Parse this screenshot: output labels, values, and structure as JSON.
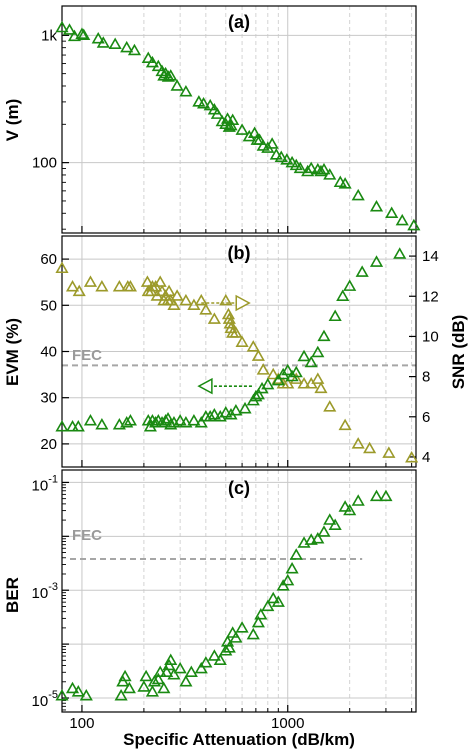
{
  "colors": {
    "green": "#1a8a12",
    "olive": "#9c9a2a",
    "fec": "#a6a6a6",
    "grid_major": "#c8c8c8",
    "grid_minor": "#cfcfcf"
  },
  "x_axis": {
    "label": "Specific Attenuation (dB/km)",
    "scale": "log",
    "range": [
      80,
      4200
    ],
    "tick_values": [
      100,
      1000
    ],
    "tick_labels": [
      "100",
      "1000"
    ],
    "minor_ticks": [
      200,
      300,
      400,
      500,
      600,
      700,
      800,
      900,
      2000,
      3000,
      4000
    ]
  },
  "chart_data": [
    {
      "type": "scatter",
      "panel_label": "(a)",
      "ylabel": "V (m)",
      "yscale": "log",
      "ylim": [
        28,
        1700
      ],
      "y_tick_values": [
        1000,
        100
      ],
      "y_tick_labels": [
        "1k",
        "100"
      ],
      "series": [
        {
          "color": "#1a8a12",
          "marker": "triangle-open",
          "points": [
            [
              80,
              1150
            ],
            [
              87,
              1100
            ],
            [
              92,
              980
            ],
            [
              100,
              1020
            ],
            [
              102,
              1000
            ],
            [
              120,
              940
            ],
            [
              127,
              870
            ],
            [
              145,
              850
            ],
            [
              165,
              800
            ],
            [
              180,
              760
            ],
            [
              210,
              660
            ],
            [
              220,
              610
            ],
            [
              235,
              570
            ],
            [
              245,
              520
            ],
            [
              250,
              480
            ],
            [
              255,
              500
            ],
            [
              263,
              470
            ],
            [
              270,
              480
            ],
            [
              290,
              400
            ],
            [
              320,
              360
            ],
            [
              370,
              300
            ],
            [
              390,
              290
            ],
            [
              420,
              280
            ],
            [
              440,
              260
            ],
            [
              455,
              240
            ],
            [
              480,
              210
            ],
            [
              500,
              200
            ],
            [
              510,
              220
            ],
            [
              520,
              190
            ],
            [
              530,
              195
            ],
            [
              540,
              215
            ],
            [
              600,
              180
            ],
            [
              650,
              160
            ],
            [
              690,
              170
            ],
            [
              710,
              150
            ],
            [
              730,
              150
            ],
            [
              760,
              135
            ],
            [
              800,
              130
            ],
            [
              840,
              140
            ],
            [
              880,
              115
            ],
            [
              930,
              110
            ],
            [
              990,
              105
            ],
            [
              1050,
              100
            ],
            [
              1100,
              95
            ],
            [
              1150,
              90
            ],
            [
              1250,
              85
            ],
            [
              1300,
              90
            ],
            [
              1400,
              88
            ],
            [
              1450,
              85
            ],
            [
              1500,
              88
            ],
            [
              1600,
              80
            ],
            [
              1800,
              70
            ],
            [
              1900,
              68
            ],
            [
              2200,
              55
            ],
            [
              2700,
              45
            ],
            [
              3200,
              40
            ],
            [
              3600,
              35
            ],
            [
              4100,
              32
            ]
          ]
        }
      ]
    },
    {
      "type": "scatter",
      "panel_label": "(b)",
      "ylabel": "EVM (%)",
      "ylim": [
        15,
        65
      ],
      "y_tick_values": [
        20,
        30,
        40,
        50,
        60
      ],
      "y2label": "SNR (dB)",
      "y2lim": [
        3.5,
        15
      ],
      "y2_tick_values": [
        4,
        6,
        8,
        10,
        12,
        14
      ],
      "fec_label": "FEC",
      "fec_evm": 37,
      "arrows": [
        {
          "direction": "right",
          "color": "#9c9a2a",
          "from_x": 380,
          "to_x": 650,
          "y": 50.5
        },
        {
          "direction": "left",
          "color": "#1a8a12",
          "from_x": 670,
          "to_x": 370,
          "y": 32.5
        }
      ],
      "series": [
        {
          "axis": "left",
          "color": "#9c9a2a",
          "marker": "triangle-open",
          "points": [
            [
              80,
              58
            ],
            [
              90,
              54
            ],
            [
              97,
              53
            ],
            [
              110,
              55
            ],
            [
              125,
              54
            ],
            [
              152,
              54
            ],
            [
              167,
              54
            ],
            [
              172,
              54
            ],
            [
              208,
              55
            ],
            [
              210,
              53
            ],
            [
              217,
              53
            ],
            [
              220,
              54
            ],
            [
              228,
              54
            ],
            [
              232,
              52
            ],
            [
              240,
              55
            ],
            [
              245,
              53
            ],
            [
              250,
              51
            ],
            [
              255,
              52
            ],
            [
              262,
              51
            ],
            [
              265,
              53
            ],
            [
              270,
              51
            ],
            [
              280,
              50
            ],
            [
              290,
              52
            ],
            [
              320,
              51
            ],
            [
              350,
              50
            ],
            [
              380,
              51
            ],
            [
              400,
              49
            ],
            [
              440,
              47
            ],
            [
              500,
              51
            ],
            [
              515,
              48
            ],
            [
              520,
              47
            ],
            [
              525,
              46
            ],
            [
              530,
              45
            ],
            [
              540,
              44
            ],
            [
              560,
              44
            ],
            [
              600,
              42
            ],
            [
              680,
              41
            ],
            [
              720,
              39
            ],
            [
              760,
              36
            ],
            [
              850,
              35
            ],
            [
              900,
              34
            ],
            [
              950,
              33
            ],
            [
              1000,
              33
            ],
            [
              1100,
              34
            ],
            [
              1200,
              33
            ],
            [
              1300,
              33
            ],
            [
              1400,
              34
            ],
            [
              1450,
              32
            ],
            [
              1600,
              28
            ],
            [
              1900,
              24
            ],
            [
              2200,
              20
            ],
            [
              2500,
              19
            ],
            [
              3100,
              18
            ],
            [
              4000,
              17
            ]
          ]
        },
        {
          "axis": "right",
          "color": "#1a8a12",
          "marker": "triangle-open",
          "points": [
            [
              80,
              5.5
            ],
            [
              90,
              5.5
            ],
            [
              96,
              5.5
            ],
            [
              110,
              5.8
            ],
            [
              125,
              5.6
            ],
            [
              152,
              5.6
            ],
            [
              165,
              5.7
            ],
            [
              172,
              5.8
            ],
            [
              210,
              5.8
            ],
            [
              215,
              5.5
            ],
            [
              220,
              5.8
            ],
            [
              228,
              5.7
            ],
            [
              235,
              5.8
            ],
            [
              245,
              5.7
            ],
            [
              255,
              5.8
            ],
            [
              262,
              5.9
            ],
            [
              270,
              5.6
            ],
            [
              280,
              5.7
            ],
            [
              300,
              5.8
            ],
            [
              320,
              5.7
            ],
            [
              350,
              5.8
            ],
            [
              380,
              5.7
            ],
            [
              400,
              6.0
            ],
            [
              420,
              6.0
            ],
            [
              440,
              6.1
            ],
            [
              470,
              6.0
            ],
            [
              500,
              6.2
            ],
            [
              530,
              6.1
            ],
            [
              560,
              6.3
            ],
            [
              620,
              6.4
            ],
            [
              680,
              6.8
            ],
            [
              700,
              7.0
            ],
            [
              720,
              7.1
            ],
            [
              750,
              7.4
            ],
            [
              800,
              7.6
            ],
            [
              900,
              7.8
            ],
            [
              950,
              8.1
            ],
            [
              1000,
              8.3
            ],
            [
              1050,
              8.0
            ],
            [
              1100,
              8.2
            ],
            [
              1200,
              9.0
            ],
            [
              1300,
              8.7
            ],
            [
              1400,
              9.2
            ],
            [
              1500,
              10.0
            ],
            [
              1700,
              11.0
            ],
            [
              1850,
              12.0
            ],
            [
              2000,
              12.5
            ],
            [
              2300,
              13.2
            ],
            [
              2700,
              13.7
            ],
            [
              3500,
              14.1
            ]
          ]
        }
      ]
    },
    {
      "type": "scatter",
      "panel_label": "(c)",
      "ylabel": "BER",
      "yscale": "log",
      "ylim": [
        5.5e-06,
        0.17
      ],
      "y_tick_values": [
        0.1,
        0.001,
        1e-05
      ],
      "y_tick_bases": [
        "10",
        "10",
        "10"
      ],
      "y_tick_exponents": [
        "-1",
        "-3",
        "-5"
      ],
      "fec_label": "FEC",
      "fec_ber": 0.0038,
      "series": [
        {
          "color": "#1a8a12",
          "marker": "triangle-open",
          "points": [
            [
              80,
              1.1e-05
            ],
            [
              90,
              1.5e-05
            ],
            [
              96,
              1.3e-05
            ],
            [
              105,
              1.1e-05
            ],
            [
              155,
              1.1e-05
            ],
            [
              158,
              2e-05
            ],
            [
              162,
              2.5e-05
            ],
            [
              170,
              1.5e-05
            ],
            [
              200,
              1.6e-05
            ],
            [
              205,
              2.5e-05
            ],
            [
              220,
              1.3e-05
            ],
            [
              225,
              2e-05
            ],
            [
              235,
              2.2e-05
            ],
            [
              240,
              3e-05
            ],
            [
              250,
              1.5e-05
            ],
            [
              258,
              3e-05
            ],
            [
              265,
              4e-05
            ],
            [
              270,
              5e-05
            ],
            [
              280,
              2.7e-05
            ],
            [
              300,
              3.5e-05
            ],
            [
              320,
              2e-05
            ],
            [
              340,
              3e-05
            ],
            [
              380,
              3.5e-05
            ],
            [
              400,
              4.5e-05
            ],
            [
              440,
              6e-05
            ],
            [
              470,
              5e-05
            ],
            [
              500,
              7.5e-05
            ],
            [
              510,
              0.00011
            ],
            [
              520,
              8.5e-05
            ],
            [
              540,
              0.00016
            ],
            [
              560,
              0.00013
            ],
            [
              600,
              0.0002
            ],
            [
              680,
              0.00015
            ],
            [
              720,
              0.00025
            ],
            [
              740,
              0.00035
            ],
            [
              800,
              0.0005
            ],
            [
              850,
              0.0007
            ],
            [
              900,
              0.0006
            ],
            [
              950,
              0.0012
            ],
            [
              1000,
              0.0015
            ],
            [
              1050,
              0.0025
            ],
            [
              1100,
              0.0045
            ],
            [
              1200,
              0.0075
            ],
            [
              1300,
              0.0085
            ],
            [
              1400,
              0.009
            ],
            [
              1500,
              0.012
            ],
            [
              1600,
              0.02
            ],
            [
              1700,
              0.016
            ],
            [
              1900,
              0.035
            ],
            [
              2000,
              0.03
            ],
            [
              2200,
              0.045
            ],
            [
              2700,
              0.055
            ],
            [
              3000,
              0.055
            ]
          ]
        }
      ]
    }
  ]
}
